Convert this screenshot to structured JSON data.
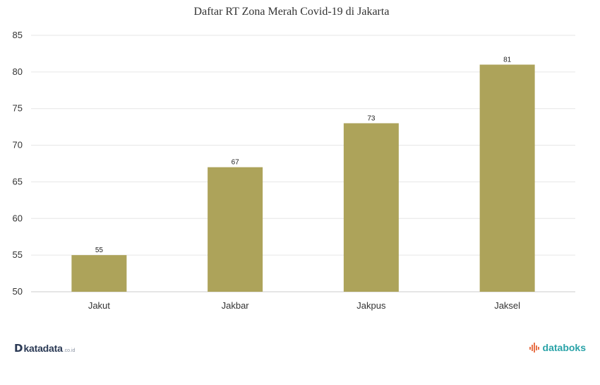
{
  "chart_data": {
    "type": "bar",
    "title": "Daftar RT Zona Merah Covid-19 di Jakarta",
    "categories": [
      "Jakut",
      "Jakbar",
      "Jakpus",
      "Jaksel"
    ],
    "values": [
      55,
      67,
      73,
      81
    ],
    "data_labels": [
      "55",
      "67",
      "73",
      "81"
    ],
    "ylim": [
      50,
      85
    ],
    "yticks": [
      50,
      55,
      60,
      65,
      70,
      75,
      80,
      85
    ],
    "grid": true,
    "legend": "none",
    "colors": {
      "bar": "#ada35a",
      "grid": "#e6e6e6",
      "axis": "#cccccc"
    }
  },
  "branding": {
    "left_mark": "D",
    "left_name": "katadata",
    "left_suffix": ".co.id",
    "right_name": "databoks",
    "right_icon": "databoks-logo-icon"
  }
}
